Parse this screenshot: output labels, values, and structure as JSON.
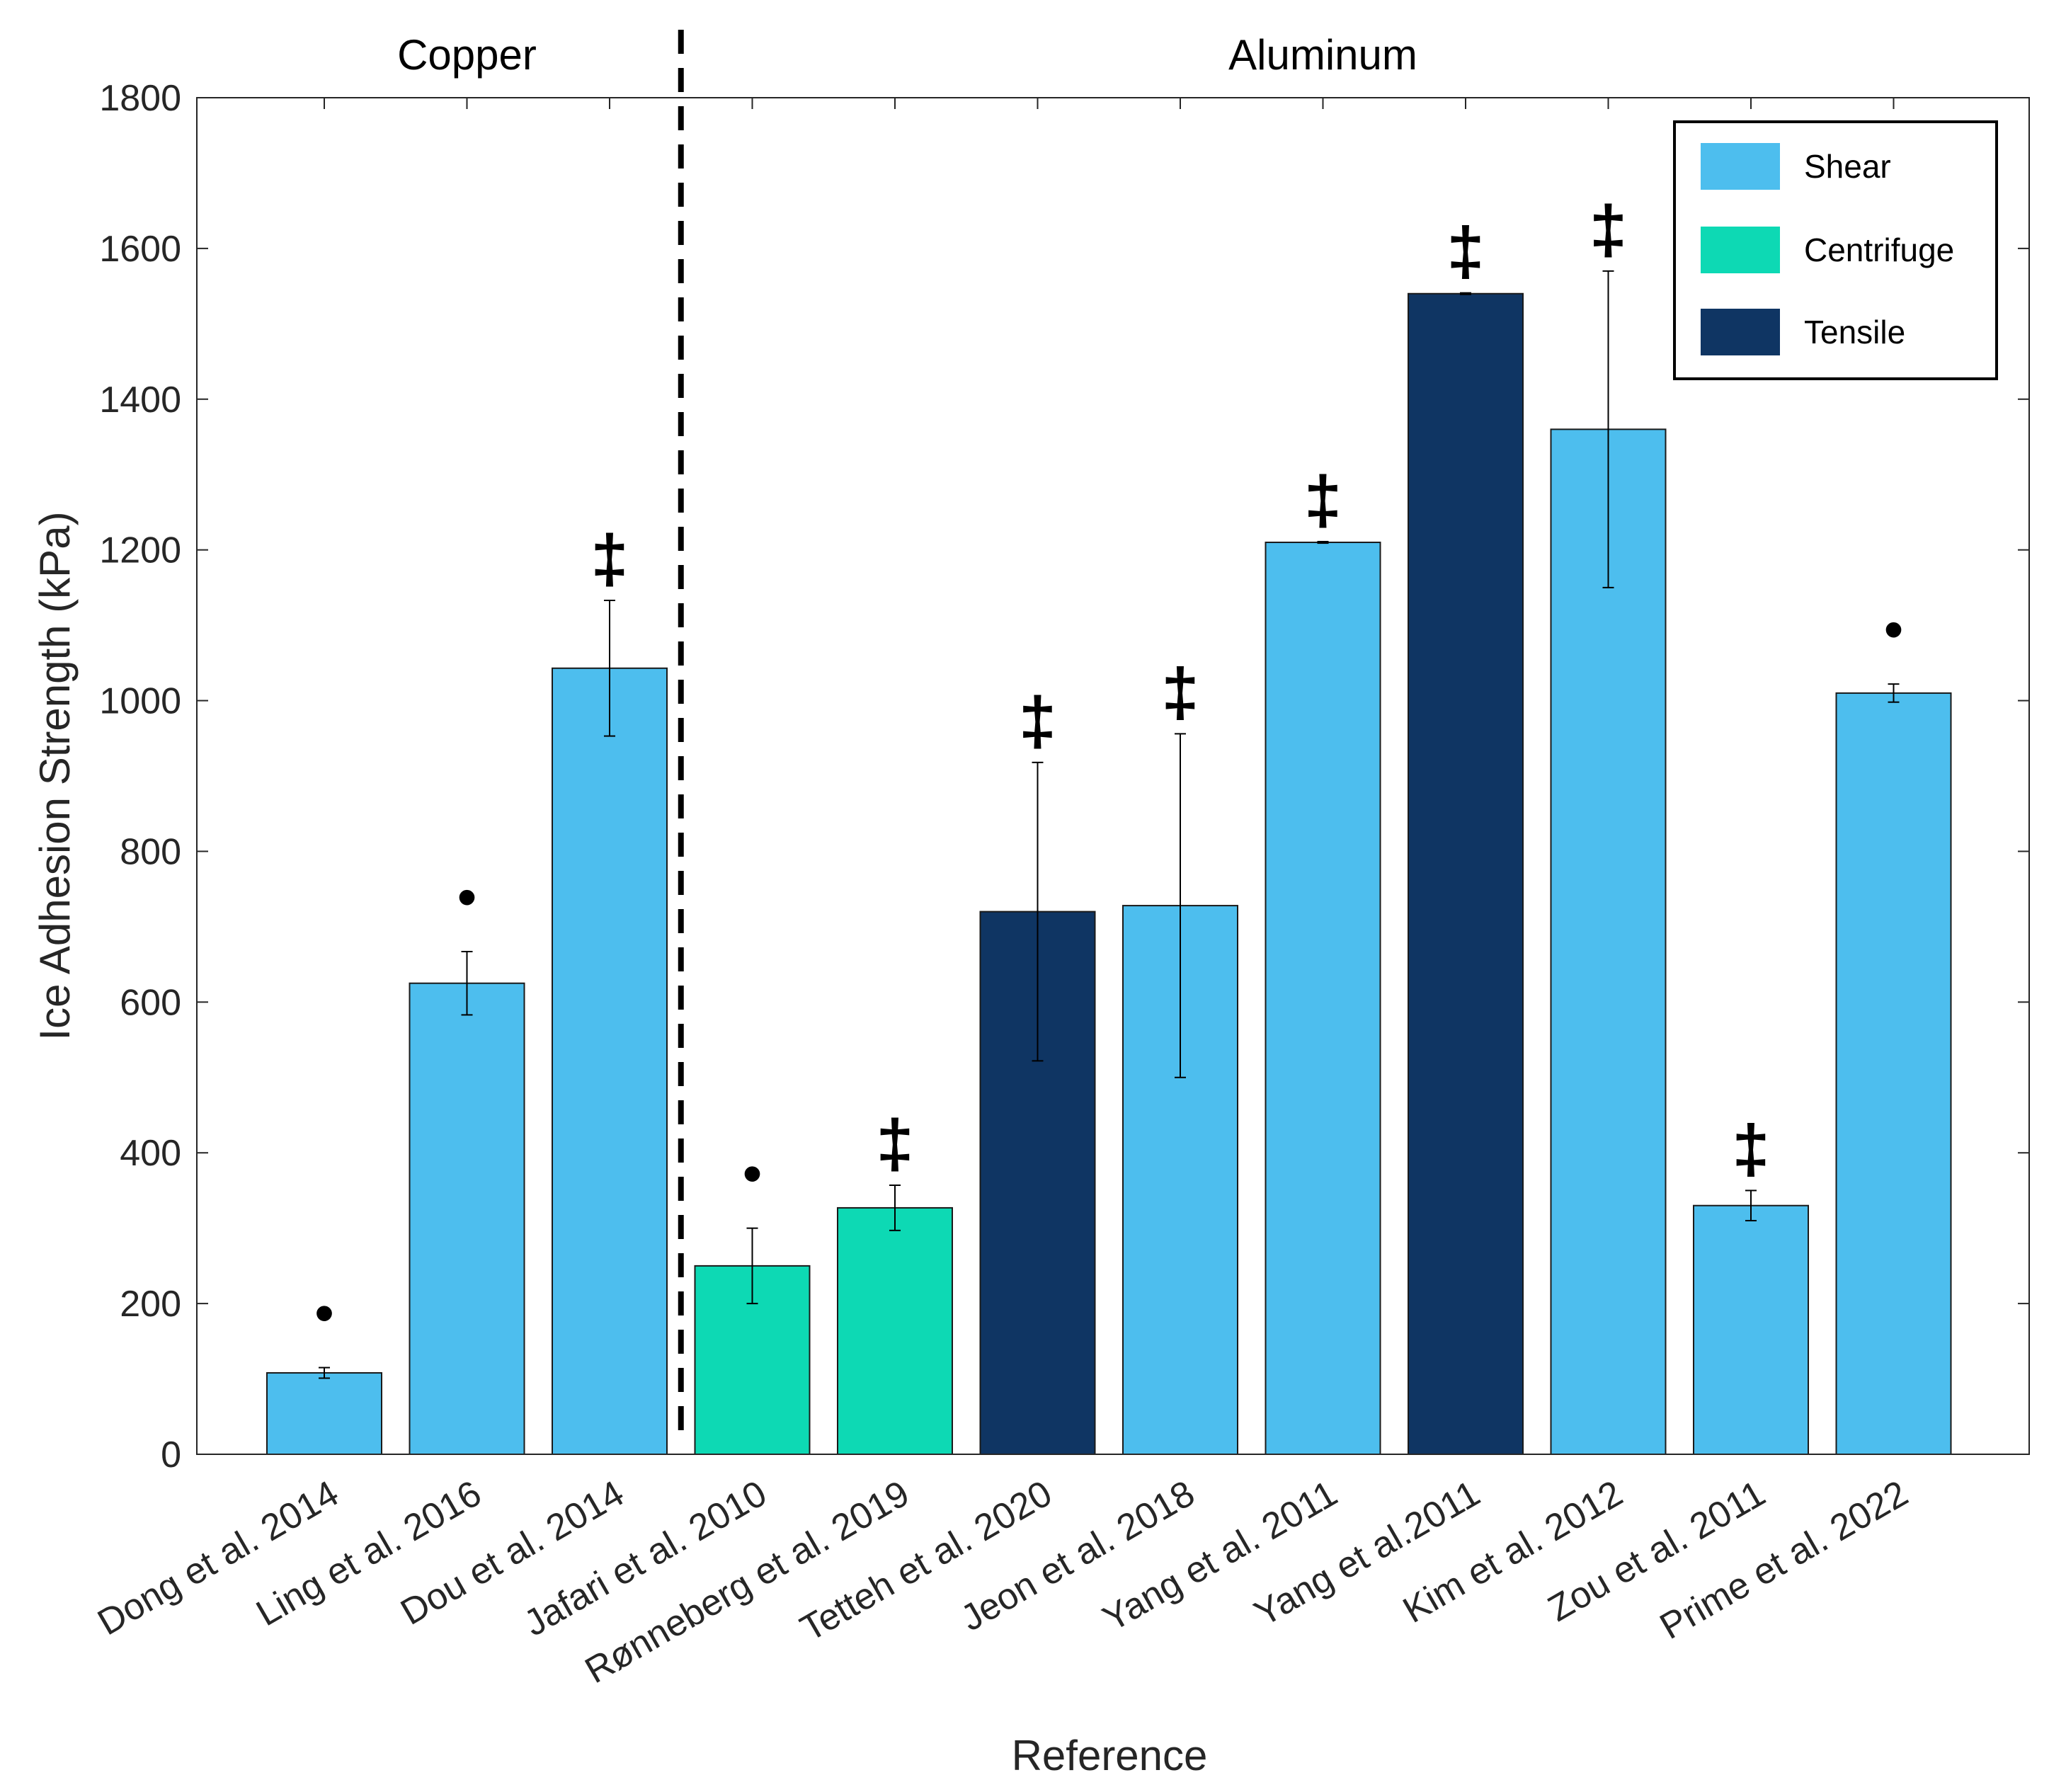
{
  "chart_data": {
    "type": "bar",
    "xlabel": "Reference",
    "ylabel": "Ice Adhesion Strength (kPa)",
    "ylim": [
      0,
      1800
    ],
    "yticks": [
      0,
      200,
      400,
      600,
      800,
      1000,
      1200,
      1400,
      1600,
      1800
    ],
    "grid": false,
    "legend_position": "top-right",
    "groups": [
      {
        "label": "Copper",
        "first_index": 0,
        "last_index": 2
      },
      {
        "label": "Aluminum",
        "first_index": 3,
        "last_index": 11
      }
    ],
    "legend": [
      {
        "name": "Shear",
        "color": "#4DBEEE"
      },
      {
        "name": "Centrifuge",
        "color": "#0DD9B4"
      },
      {
        "name": "Tensile",
        "color": "#0F3563"
      }
    ],
    "colors": {
      "Shear": "#4DBEEE",
      "Centrifuge": "#0DD9B4",
      "Tensile": "#0F3563"
    },
    "symbols": {
      "dot": "•",
      "dagger": "‡"
    },
    "categories": [
      "Dong et al. 2014",
      "Ling et al. 2016",
      "Dou et al. 2014",
      "Jafari et al. 2010",
      "Rønneberg et al. 2019",
      "Tetteh et al. 2020",
      "Jeon et al. 2018",
      "Yang et al. 2011",
      "Yang et al.2011",
      "Kim et al. 2012",
      "Zou et al. 2011",
      "Prime et al. 2022"
    ],
    "values": [
      108,
      625,
      1043,
      250,
      327,
      720,
      728,
      1210,
      1540,
      1360,
      330,
      1010
    ],
    "errors": [
      7,
      42,
      90,
      50,
      30,
      198,
      228,
      1,
      1,
      210,
      20,
      12
    ],
    "method": [
      "Shear",
      "Shear",
      "Shear",
      "Centrifuge",
      "Centrifuge",
      "Tensile",
      "Shear",
      "Shear",
      "Tensile",
      "Shear",
      "Shear",
      "Shear"
    ],
    "markers": [
      "dot",
      "dot",
      "dagger",
      "dot",
      "dagger",
      "dagger",
      "dagger",
      "dagger",
      "dagger",
      "dagger",
      "dagger",
      "dot"
    ]
  }
}
